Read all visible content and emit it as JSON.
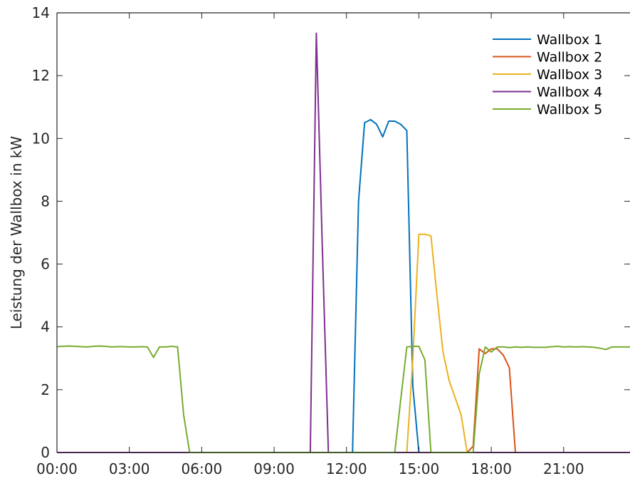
{
  "chart_data": {
    "type": "line",
    "title": "",
    "xlabel": "",
    "ylabel": "Leistung der Wallbox in kW",
    "x_ticks": [
      "00:00",
      "03:00",
      "06:00",
      "09:00",
      "12:00",
      "15:00",
      "18:00",
      "21:00"
    ],
    "x_tick_hours": [
      0,
      3,
      6,
      9,
      12,
      15,
      18,
      21
    ],
    "xlim": [
      "00:00",
      "23:45"
    ],
    "ylim": [
      0,
      14
    ],
    "y_ticks": [
      0,
      2,
      4,
      6,
      8,
      10,
      12,
      14
    ],
    "grid": false,
    "legend_position": "top-right",
    "series": [
      {
        "name": "Wallbox 1",
        "color": "#0072bd",
        "points": [
          [
            "00:00",
            0
          ],
          [
            "12:00",
            0
          ],
          [
            "12:15",
            0
          ],
          [
            "12:30",
            8.0
          ],
          [
            "12:45",
            10.5
          ],
          [
            "13:00",
            10.6
          ],
          [
            "13:15",
            10.45
          ],
          [
            "13:30",
            10.05
          ],
          [
            "13:45",
            10.55
          ],
          [
            "14:00",
            10.55
          ],
          [
            "14:15",
            10.45
          ],
          [
            "14:30",
            10.25
          ],
          [
            "14:45",
            2.1
          ],
          [
            "15:00",
            0
          ],
          [
            "23:45",
            0
          ]
        ]
      },
      {
        "name": "Wallbox 2",
        "color": "#d95319",
        "points": [
          [
            "00:00",
            0
          ],
          [
            "17:00",
            0
          ],
          [
            "17:15",
            0.2
          ],
          [
            "17:30",
            3.3
          ],
          [
            "17:45",
            3.15
          ],
          [
            "18:00",
            3.3
          ],
          [
            "18:15",
            3.3
          ],
          [
            "18:30",
            3.1
          ],
          [
            "18:45",
            2.7
          ],
          [
            "19:00",
            0
          ],
          [
            "23:45",
            0
          ]
        ]
      },
      {
        "name": "Wallbox 3",
        "color": "#edb120",
        "points": [
          [
            "00:00",
            0
          ],
          [
            "14:30",
            0
          ],
          [
            "14:45",
            3.0
          ],
          [
            "15:00",
            6.95
          ],
          [
            "15:15",
            6.95
          ],
          [
            "15:30",
            6.9
          ],
          [
            "15:45",
            5.0
          ],
          [
            "16:00",
            3.2
          ],
          [
            "16:15",
            2.3
          ],
          [
            "16:30",
            1.75
          ],
          [
            "16:45",
            1.2
          ],
          [
            "17:00",
            0
          ],
          [
            "23:45",
            0
          ]
        ]
      },
      {
        "name": "Wallbox 4",
        "color": "#7e2f8e",
        "points": [
          [
            "00:00",
            0
          ],
          [
            "10:30",
            0
          ],
          [
            "10:45",
            13.35
          ],
          [
            "11:00",
            6.5
          ],
          [
            "11:15",
            0
          ],
          [
            "23:45",
            0
          ]
        ]
      },
      {
        "name": "Wallbox 5",
        "color": "#77ac30",
        "points": [
          [
            "00:00",
            3.37
          ],
          [
            "00:15",
            3.38
          ],
          [
            "00:30",
            3.39
          ],
          [
            "00:45",
            3.38
          ],
          [
            "01:00",
            3.37
          ],
          [
            "01:15",
            3.36
          ],
          [
            "01:30",
            3.38
          ],
          [
            "01:45",
            3.39
          ],
          [
            "02:00",
            3.38
          ],
          [
            "02:15",
            3.36
          ],
          [
            "02:30",
            3.37
          ],
          [
            "02:45",
            3.37
          ],
          [
            "03:00",
            3.36
          ],
          [
            "03:15",
            3.36
          ],
          [
            "03:30",
            3.37
          ],
          [
            "03:45",
            3.36
          ],
          [
            "04:00",
            3.03
          ],
          [
            "04:15",
            3.36
          ],
          [
            "04:30",
            3.36
          ],
          [
            "04:45",
            3.38
          ],
          [
            "05:00",
            3.36
          ],
          [
            "05:15",
            1.2
          ],
          [
            "05:30",
            0
          ],
          [
            "14:00",
            0
          ],
          [
            "14:15",
            1.7
          ],
          [
            "14:30",
            3.36
          ],
          [
            "14:45",
            3.38
          ],
          [
            "15:00",
            3.38
          ],
          [
            "15:15",
            2.95
          ],
          [
            "15:30",
            0
          ],
          [
            "17:15",
            0
          ],
          [
            "17:30",
            2.5
          ],
          [
            "17:45",
            3.36
          ],
          [
            "18:00",
            3.2
          ],
          [
            "18:15",
            3.36
          ],
          [
            "18:30",
            3.36
          ],
          [
            "18:45",
            3.34
          ],
          [
            "19:00",
            3.36
          ],
          [
            "19:15",
            3.35
          ],
          [
            "19:30",
            3.36
          ],
          [
            "19:45",
            3.35
          ],
          [
            "20:00",
            3.35
          ],
          [
            "20:15",
            3.35
          ],
          [
            "20:30",
            3.37
          ],
          [
            "20:45",
            3.38
          ],
          [
            "21:00",
            3.36
          ],
          [
            "21:15",
            3.37
          ],
          [
            "21:30",
            3.36
          ],
          [
            "21:45",
            3.37
          ],
          [
            "22:00",
            3.36
          ],
          [
            "22:15",
            3.35
          ],
          [
            "22:30",
            3.32
          ],
          [
            "22:45",
            3.28
          ],
          [
            "23:00",
            3.36
          ],
          [
            "23:15",
            3.36
          ],
          [
            "23:45",
            3.36
          ]
        ]
      }
    ]
  }
}
